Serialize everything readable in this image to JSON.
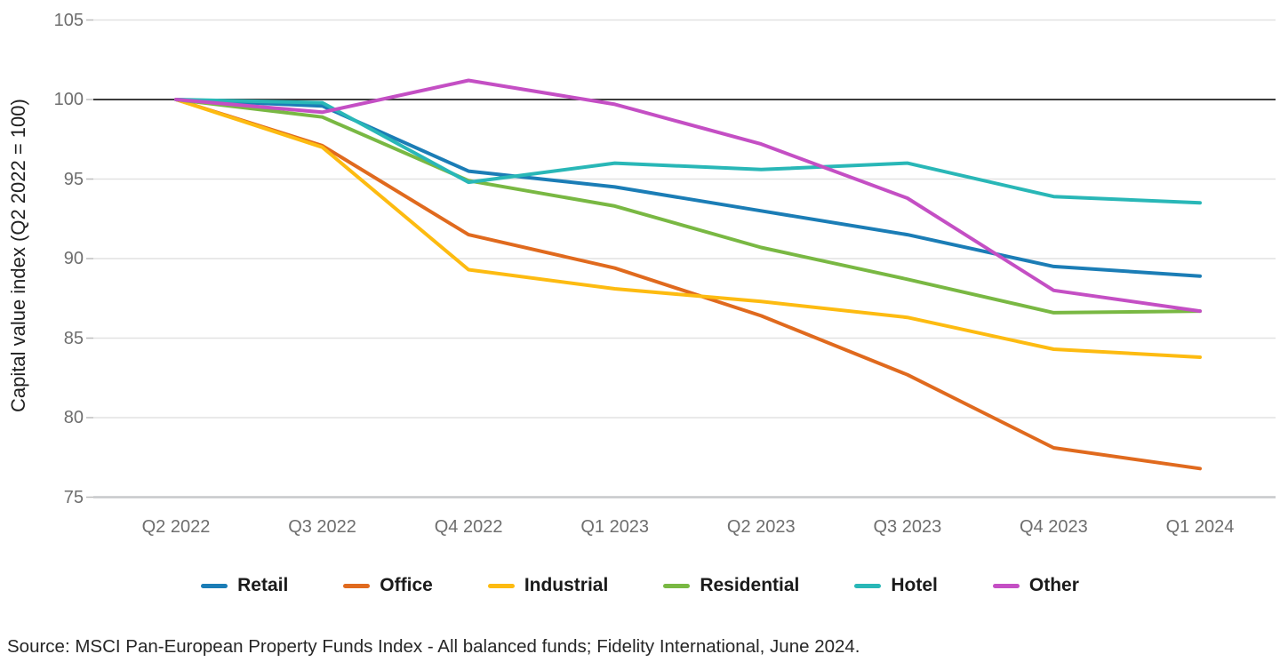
{
  "chart_data": {
    "type": "line",
    "title": "",
    "ylabel": "Capital value index (Q2 2022 = 100)",
    "xlabel": "",
    "ylim": [
      75,
      105
    ],
    "yticks": [
      105,
      100,
      95,
      90,
      85,
      80,
      75
    ],
    "baseline_value": 100,
    "grid": "horizontal",
    "legend_position": "bottom",
    "categories": [
      "Q2 2022",
      "Q3 2022",
      "Q4 2022",
      "Q1 2023",
      "Q2 2023",
      "Q3 2023",
      "Q4 2023",
      "Q1 2024"
    ],
    "series": [
      {
        "name": "Retail",
        "color": "#1b7db6",
        "values": [
          100,
          99.6,
          95.5,
          94.5,
          93.0,
          91.5,
          89.5,
          88.9
        ]
      },
      {
        "name": "Office",
        "color": "#e06a1e",
        "values": [
          100,
          97.1,
          91.5,
          89.4,
          86.4,
          82.7,
          78.1,
          76.8
        ]
      },
      {
        "name": "Industrial",
        "color": "#fdbb11",
        "values": [
          100,
          97.0,
          89.3,
          88.1,
          87.3,
          86.3,
          84.3,
          83.8
        ]
      },
      {
        "name": "Residential",
        "color": "#79b843",
        "values": [
          100,
          98.9,
          94.9,
          93.3,
          90.7,
          88.7,
          86.6,
          86.7
        ]
      },
      {
        "name": "Hotel",
        "color": "#29b7b7",
        "values": [
          100,
          99.8,
          94.8,
          96.0,
          95.6,
          96.0,
          93.9,
          93.5
        ]
      },
      {
        "name": "Other",
        "color": "#c44fc4",
        "values": [
          100,
          99.2,
          101.2,
          99.7,
          97.2,
          93.8,
          88.0,
          86.7
        ]
      }
    ],
    "colors": {
      "baseline_line": "#3d3d3d",
      "gridline": "#e2e2e2",
      "bottom_axis_line": "#c7c9cb",
      "tick_mark": "#bdbdbd",
      "axis_text": "#6e6e6e",
      "legend_text": "#1b1b1b"
    }
  },
  "source_note": "Source: MSCI Pan-European Property Funds Index - All balanced funds; Fidelity International, June 2024."
}
